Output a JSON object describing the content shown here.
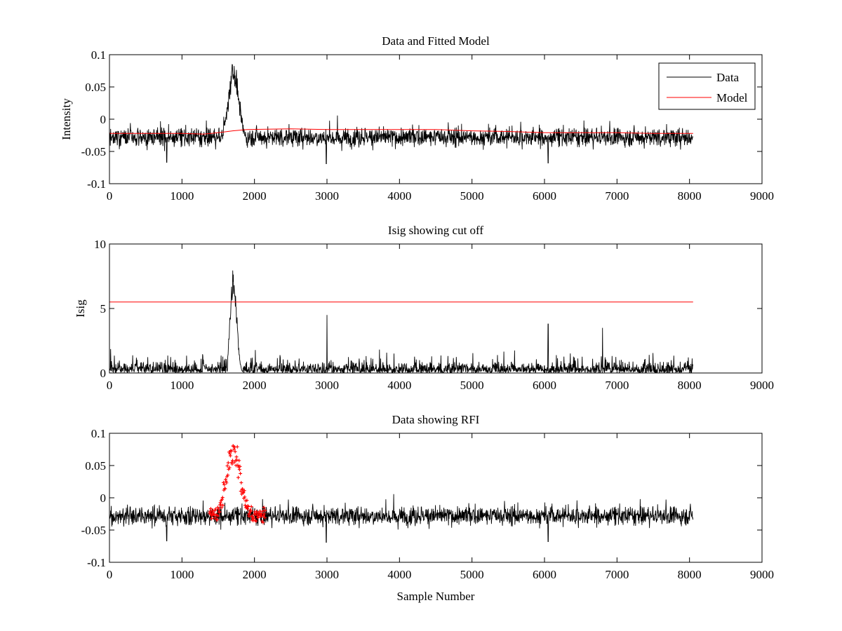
{
  "chart_data": [
    {
      "type": "line",
      "title": "Data and Fitted Model",
      "xlabel": "",
      "ylabel": "Intensity",
      "xlim": [
        0,
        9000
      ],
      "ylim": [
        -0.1,
        0.1
      ],
      "xticks": [
        0,
        1000,
        2000,
        3000,
        4000,
        5000,
        6000,
        7000,
        8000,
        9000
      ],
      "yticks": [
        -0.1,
        -0.05,
        0,
        0.05,
        0.1
      ],
      "ytick_labels": [
        "-0.1",
        "-0.05",
        "0",
        "0.05",
        "0.1"
      ],
      "grid": false,
      "legend": {
        "position": "top-right",
        "entries": [
          "Data",
          "Model"
        ]
      },
      "series": [
        {
          "name": "Data",
          "color": "#000000",
          "kind": "noisy-trace",
          "x_range": [
            0,
            8050
          ],
          "baseline": -0.028,
          "noise_band": [
            -0.058,
            0.004
          ],
          "peaks": [
            {
              "x_start": 1550,
              "x_peak": 1710,
              "x_end": 1880,
              "value": 0.08
            },
            {
              "x": 790,
              "value": -0.067
            },
            {
              "x": 2990,
              "value": -0.069
            },
            {
              "x": 6050,
              "value": -0.068
            }
          ]
        },
        {
          "name": "Model",
          "color": "#ff0000",
          "kind": "line",
          "x": [
            0,
            1000,
            1300,
            1500,
            1700,
            1900,
            2500,
            3000,
            3500,
            4000,
            4500,
            5000,
            5500,
            6000,
            6500,
            7000,
            7500,
            8050
          ],
          "y": [
            -0.022,
            -0.022,
            -0.023,
            -0.021,
            -0.018,
            -0.016,
            -0.015,
            -0.016,
            -0.016,
            -0.016,
            -0.016,
            -0.018,
            -0.019,
            -0.021,
            -0.021,
            -0.021,
            -0.022,
            -0.022
          ]
        }
      ]
    },
    {
      "type": "line",
      "title": "Isig showing cut off",
      "xlabel": "",
      "ylabel": "Isig",
      "xlim": [
        0,
        9000
      ],
      "ylim": [
        0,
        10
      ],
      "xticks": [
        0,
        1000,
        2000,
        3000,
        4000,
        5000,
        6000,
        7000,
        8000,
        9000
      ],
      "yticks": [
        0,
        5,
        10
      ],
      "ytick_labels": [
        "0",
        "5",
        "10"
      ],
      "grid": false,
      "series": [
        {
          "color": "#000000",
          "kind": "noisy-trace",
          "x_range": [
            0,
            8050
          ],
          "baseline": 0.8,
          "noise_band": [
            0,
            2.2
          ],
          "peaks": [
            {
              "x_start": 1630,
              "x_peak": 1710,
              "x_end": 1850,
              "value": 8.7
            },
            {
              "x": 3000,
              "value": 4.5
            },
            {
              "x": 6050,
              "value": 3.8
            },
            {
              "x": 6800,
              "value": 3.5
            }
          ]
        },
        {
          "color": "#ff0000",
          "kind": "threshold",
          "x": [
            0,
            8050
          ],
          "y": [
            5.5,
            5.5
          ]
        }
      ]
    },
    {
      "type": "line",
      "title": "Data showing RFI",
      "xlabel": "Sample Number",
      "ylabel": "",
      "xlim": [
        0,
        9000
      ],
      "ylim": [
        -0.1,
        0.1
      ],
      "xticks": [
        0,
        1000,
        2000,
        3000,
        4000,
        5000,
        6000,
        7000,
        8000,
        9000
      ],
      "yticks": [
        -0.1,
        -0.05,
        0,
        0.05,
        0.1
      ],
      "ytick_labels": [
        "-0.1",
        "-0.05",
        "0",
        "0.05",
        "0.1"
      ],
      "grid": false,
      "series": [
        {
          "color": "#000000",
          "kind": "noisy-trace",
          "x_range": [
            0,
            8050
          ],
          "baseline": -0.028,
          "noise_band": [
            -0.058,
            0.004
          ],
          "peaks": [
            {
              "x": 790,
              "value": -0.067
            },
            {
              "x": 2990,
              "value": -0.069
            },
            {
              "x": 6050,
              "value": -0.068
            }
          ]
        },
        {
          "color": "#ff0000",
          "kind": "rfi-markers",
          "marker": "+",
          "x_range": [
            1380,
            2150
          ],
          "peak_x": 1710,
          "peak_value": 0.08
        }
      ]
    }
  ]
}
